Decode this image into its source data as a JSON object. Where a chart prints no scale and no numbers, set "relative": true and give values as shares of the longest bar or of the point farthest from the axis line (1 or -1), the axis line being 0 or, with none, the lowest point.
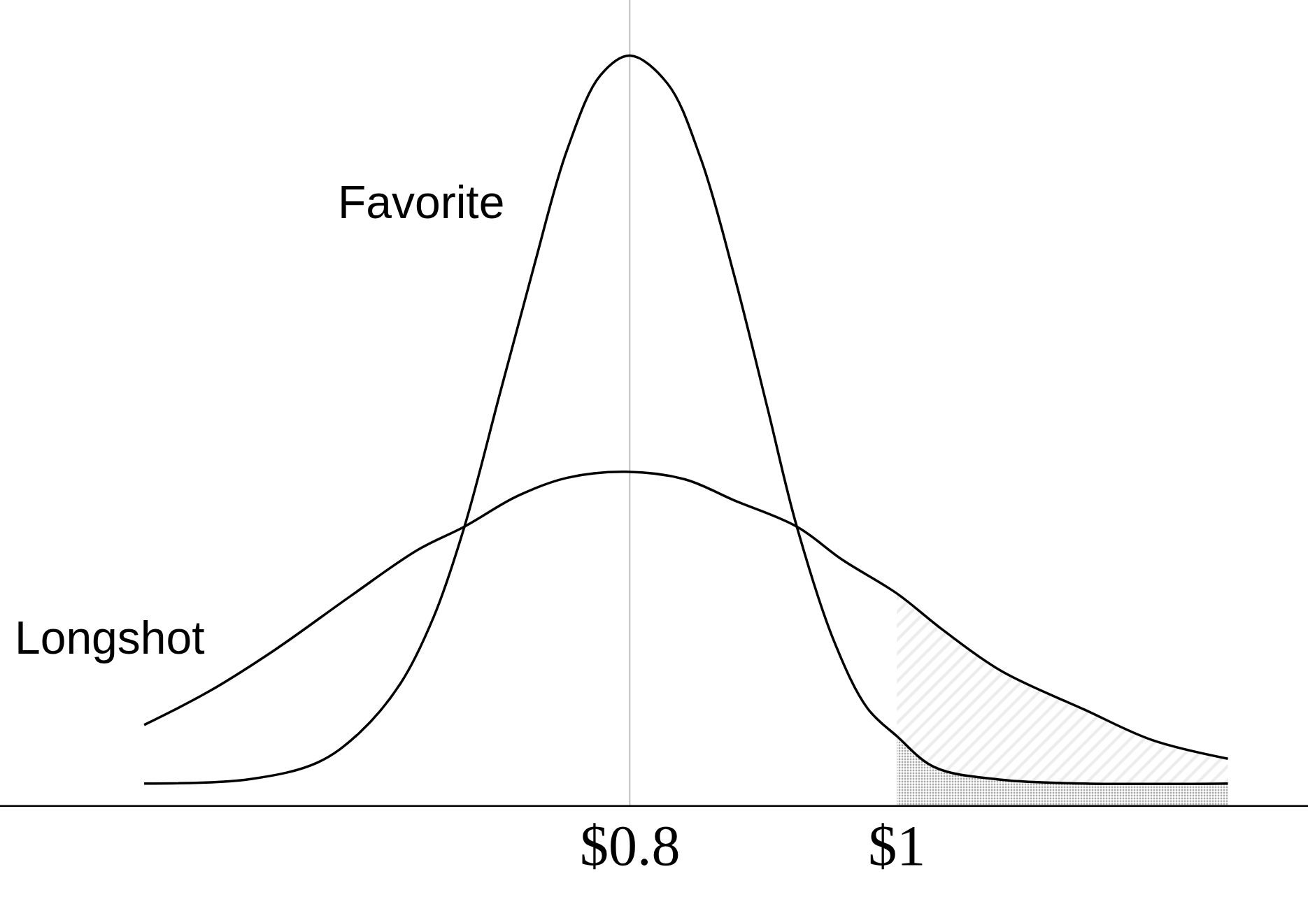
{
  "chart_data": {
    "type": "line",
    "relative": true,
    "x": [
      0.436,
      0.516,
      0.566,
      0.597,
      0.628,
      0.653,
      0.676,
      0.703,
      0.728,
      0.753,
      0.778,
      0.8,
      0.828,
      0.853,
      0.878,
      0.903,
      0.925,
      0.953,
      0.978,
      1.0,
      1.028,
      1.078,
      1.141,
      1.248
    ],
    "series": [
      {
        "name": "Favorite",
        "color": "#000000",
        "values": [
          0.031,
          0.037,
          0.059,
          0.098,
          0.164,
          0.253,
          0.373,
          0.553,
          0.719,
          0.875,
          0.974,
          1,
          0.963,
          0.863,
          0.708,
          0.531,
          0.373,
          0.22,
          0.131,
          0.094,
          0.053,
          0.036,
          0.031,
          0.031
        ]
      },
      {
        "name": "Longshot",
        "color": "#000000",
        "x": [
          0.436,
          0.484,
          0.534,
          0.591,
          0.641,
          0.676,
          0.716,
          0.753,
          0.797,
          0.841,
          0.878,
          0.925,
          0.959,
          1.0,
          1.034,
          1.078,
          1.141,
          1.191,
          1.248
        ],
        "values": [
          0.109,
          0.153,
          0.209,
          0.281,
          0.342,
          0.373,
          0.414,
          0.438,
          0.446,
          0.436,
          0.408,
          0.373,
          0.329,
          0.284,
          0.236,
          0.181,
          0.129,
          0.089,
          0.064
        ]
      },
      {
        "type": "area",
        "color": "#d9d9d9",
        "x": [
          1.0,
          1.034,
          1.078,
          1.141,
          1.191,
          1.248
        ],
        "values": [
          0.284,
          0.236,
          0.181,
          0.129,
          0.089,
          0.064
        ]
      },
      {
        "type": "area",
        "color": "#555555",
        "x": [
          1.0,
          1.028,
          1.078,
          1.141,
          1.248
        ],
        "values": [
          0.094,
          0.053,
          0.036,
          0.031,
          0.031
        ]
      }
    ],
    "xlim": [
      0.328,
      1.308
    ],
    "xticks": [
      {
        "value": 0.8,
        "label": "$0.8"
      },
      {
        "value": 1,
        "label": "$1"
      }
    ],
    "ref_lines": [
      {
        "axis": "x",
        "value": 0.8,
        "color": "#808080"
      }
    ],
    "grid": false,
    "legend": false,
    "marker": "none",
    "line_style": "solid"
  }
}
